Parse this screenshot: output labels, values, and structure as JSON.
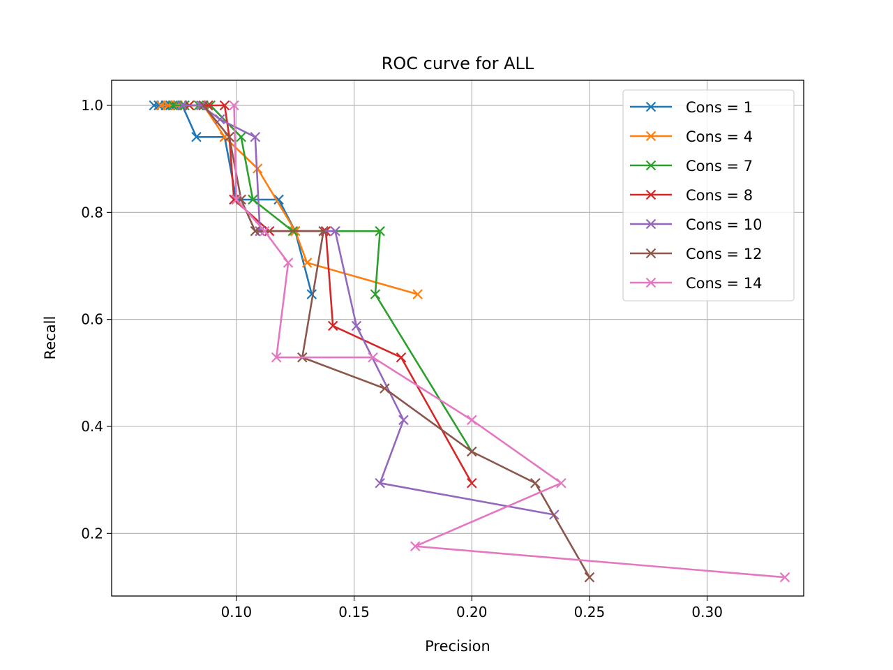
{
  "chart_data": {
    "type": "line",
    "title": "ROC curve for ALL",
    "xlabel": "Precision",
    "ylabel": "Recall",
    "xlim": [
      0.047,
      0.341
    ],
    "ylim": [
      0.083,
      1.047
    ],
    "xticks": [
      0.1,
      0.15,
      0.2,
      0.25,
      0.3
    ],
    "xtick_labels": [
      "0.10",
      "0.15",
      "0.20",
      "0.25",
      "0.30"
    ],
    "yticks": [
      0.2,
      0.4,
      0.6,
      0.8,
      1.0
    ],
    "ytick_labels": [
      "0.2",
      "0.4",
      "0.6",
      "0.8",
      "1.0"
    ],
    "grid": true,
    "legend_position": "top-right",
    "marker": "x",
    "series": [
      {
        "name": "Cons = 1",
        "color": "#1f77b4",
        "points": [
          [
            0.065,
            1.0
          ],
          [
            0.067,
            1.0
          ],
          [
            0.07,
            1.0
          ],
          [
            0.072,
            1.0
          ],
          [
            0.074,
            1.0
          ],
          [
            0.077,
            1.0
          ],
          [
            0.083,
            0.941
          ],
          [
            0.095,
            0.941
          ],
          [
            0.1,
            0.824
          ],
          [
            0.118,
            0.824
          ],
          [
            0.125,
            0.765
          ],
          [
            0.132,
            0.647
          ]
        ]
      },
      {
        "name": "Cons = 4",
        "color": "#ff7f0e",
        "points": [
          [
            0.068,
            1.0
          ],
          [
            0.071,
            1.0
          ],
          [
            0.075,
            1.0
          ],
          [
            0.08,
            1.0
          ],
          [
            0.086,
            1.0
          ],
          [
            0.095,
            0.941
          ],
          [
            0.109,
            0.882
          ],
          [
            0.125,
            0.765
          ],
          [
            0.13,
            0.706
          ],
          [
            0.177,
            0.647
          ]
        ]
      },
      {
        "name": "Cons = 7",
        "color": "#2ca02c",
        "points": [
          [
            0.073,
            1.0
          ],
          [
            0.078,
            1.0
          ],
          [
            0.084,
            1.0
          ],
          [
            0.089,
            1.0
          ],
          [
            0.102,
            0.941
          ],
          [
            0.107,
            0.824
          ],
          [
            0.124,
            0.765
          ],
          [
            0.161,
            0.765
          ],
          [
            0.159,
            0.647
          ],
          [
            0.2,
            0.353
          ]
        ]
      },
      {
        "name": "Cons = 8",
        "color": "#d62728",
        "points": [
          [
            0.08,
            1.0
          ],
          [
            0.088,
            1.0
          ],
          [
            0.095,
            1.0
          ],
          [
            0.097,
            0.941
          ],
          [
            0.099,
            0.824
          ],
          [
            0.114,
            0.765
          ],
          [
            0.138,
            0.765
          ],
          [
            0.141,
            0.588
          ],
          [
            0.17,
            0.529
          ],
          [
            0.2,
            0.294
          ]
        ]
      },
      {
        "name": "Cons = 10",
        "color": "#9467bd",
        "points": [
          [
            0.077,
            1.0
          ],
          [
            0.085,
            1.0
          ],
          [
            0.093,
            0.974
          ],
          [
            0.108,
            0.941
          ],
          [
            0.11,
            0.765
          ],
          [
            0.142,
            0.765
          ],
          [
            0.151,
            0.588
          ],
          [
            0.171,
            0.412
          ],
          [
            0.161,
            0.294
          ],
          [
            0.235,
            0.235
          ]
        ]
      },
      {
        "name": "Cons = 12",
        "color": "#8c564b",
        "points": [
          [
            0.086,
            1.0
          ],
          [
            0.097,
            0.941
          ],
          [
            0.102,
            0.824
          ],
          [
            0.108,
            0.765
          ],
          [
            0.137,
            0.765
          ],
          [
            0.128,
            0.529
          ],
          [
            0.163,
            0.471
          ],
          [
            0.2,
            0.353
          ],
          [
            0.227,
            0.294
          ],
          [
            0.25,
            0.118
          ]
        ]
      },
      {
        "name": "Cons = 14",
        "color": "#e377c2",
        "points": [
          [
            0.099,
            1.0
          ],
          [
            0.1,
            0.824
          ],
          [
            0.112,
            0.765
          ],
          [
            0.122,
            0.706
          ],
          [
            0.117,
            0.529
          ],
          [
            0.158,
            0.529
          ],
          [
            0.2,
            0.412
          ],
          [
            0.238,
            0.294
          ],
          [
            0.176,
            0.176
          ],
          [
            0.333,
            0.118
          ]
        ]
      }
    ]
  }
}
